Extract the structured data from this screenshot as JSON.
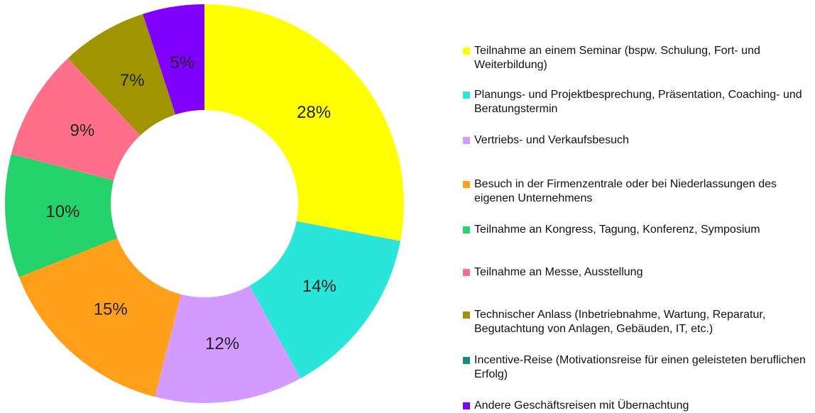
{
  "chart_data": {
    "type": "donut",
    "categories": [
      "Teilnahme an einem Seminar (bspw. Schulung, Fort- und Weiterbildung)",
      "Planungs- und Projektbesprechung, Präsentation, Coaching- und Beratungstermin",
      "Vertriebs- und Verkaufsbesuch",
      "Besuch in der Firmenzentrale oder bei Niederlassungen des eigenen Unternehmens",
      "Teilnahme an Kongress, Tagung, Konferenz, Symposium",
      "Teilnahme an Messe, Ausstellung",
      "Technischer Anlass (Inbetriebnahme, Wartung, Reparatur, Begutachtung von Anlagen, Gebäuden, IT, etc.)",
      "Incentive-Reise (Motivationsreise für einen geleisteten beruflichen Erfolg)",
      "Andere Geschäftsreisen mit Übernachtung"
    ],
    "values": [
      28,
      14,
      12,
      15,
      10,
      9,
      7,
      0,
      5
    ],
    "value_labels": [
      "28%",
      "14%",
      "12%",
      "15%",
      "10%",
      "9%",
      "7%",
      null,
      "5%"
    ],
    "colors": [
      "#ffff00",
      "#2ae5d9",
      "#d39bff",
      "#ff9f1a",
      "#24d36a",
      "#ff6f8a",
      "#a09400",
      "#168c7e",
      "#8000ff"
    ]
  }
}
